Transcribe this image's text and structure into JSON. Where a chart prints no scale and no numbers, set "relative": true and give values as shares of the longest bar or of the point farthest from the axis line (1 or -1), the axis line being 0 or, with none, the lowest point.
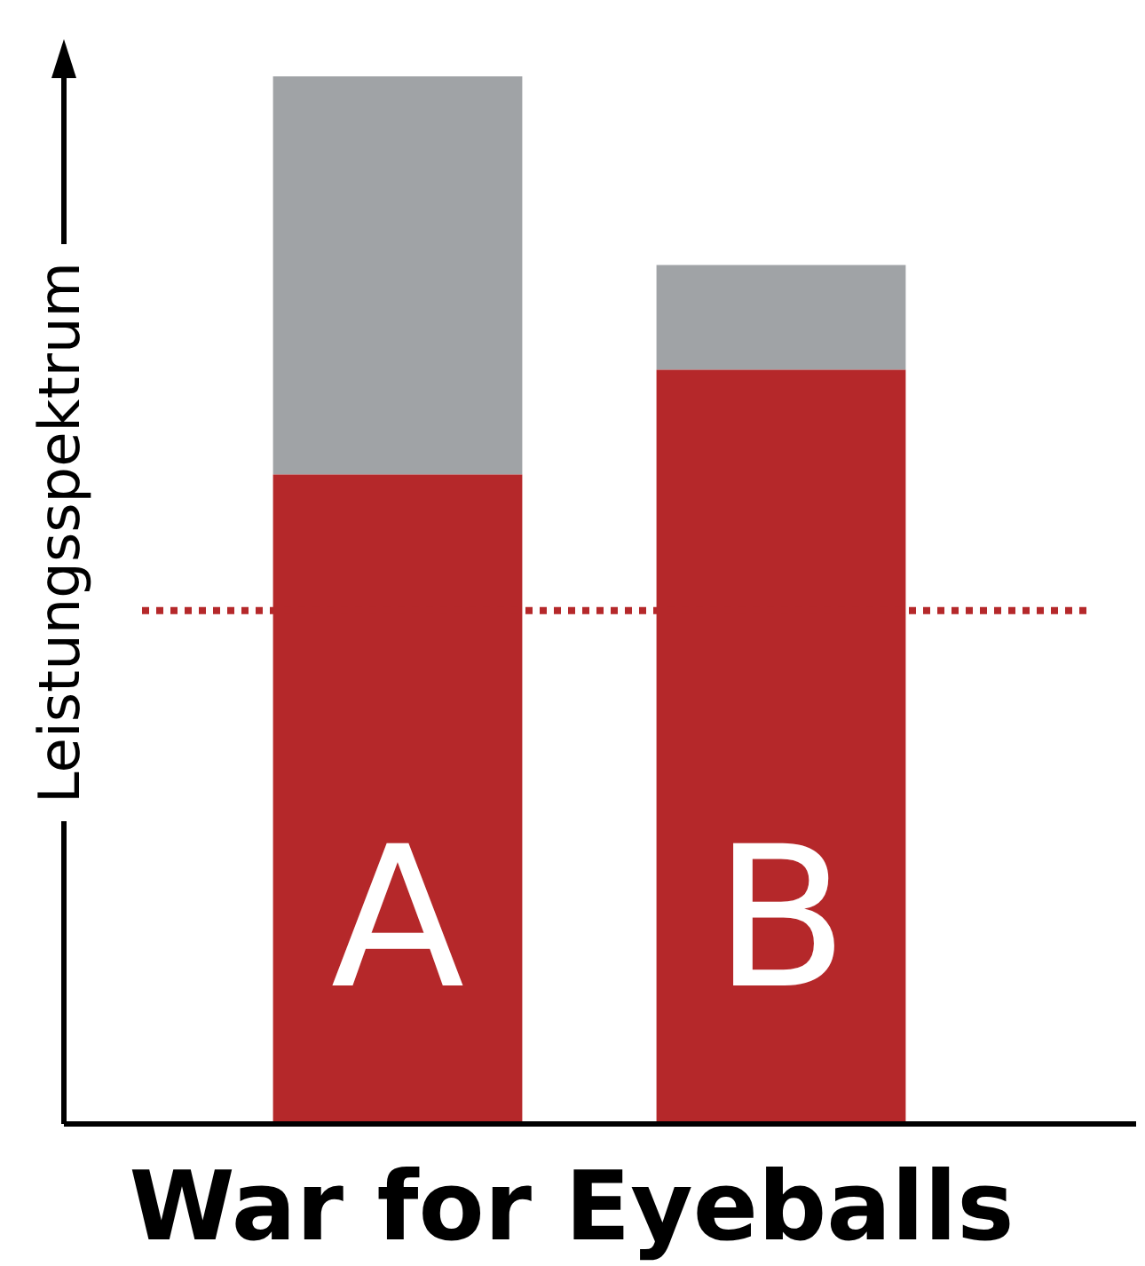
{
  "chart_data": {
    "type": "bar",
    "title": "War for Eyeballs",
    "ylabel": "Leistungsspektrum",
    "categories": [
      "A",
      "B"
    ],
    "stacked": true,
    "relative": true,
    "legend": false,
    "series": [
      {
        "color": "#b5282a",
        "values": [
          0.62,
          0.72
        ]
      },
      {
        "color": "#a0a3a6",
        "values": [
          0.38,
          0.1
        ]
      }
    ],
    "ref_lines": [
      {
        "axis": "y",
        "value": 0.49,
        "color": "#b5282a",
        "line_style": "dotted"
      }
    ]
  }
}
